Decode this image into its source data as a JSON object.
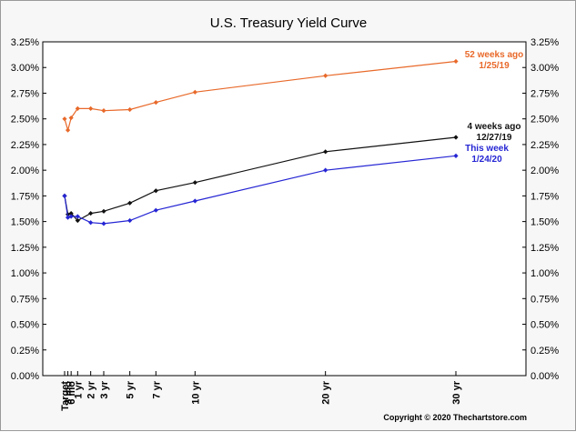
{
  "chart_data": {
    "type": "line",
    "title": "U.S. Treasury Yield Curve",
    "xlabel": "",
    "ylabel": "",
    "categories": [
      "Target",
      "3 mo",
      "6 mo",
      "1 yr",
      "2 yr",
      "3 yr",
      "5 yr",
      "7 yr",
      "10 yr",
      "20 yr",
      "30 yr"
    ],
    "x_months": [
      0,
      3,
      6,
      12,
      24,
      36,
      60,
      84,
      120,
      240,
      360
    ],
    "ylim": [
      0,
      3.25
    ],
    "yticks": [
      0,
      0.25,
      0.5,
      0.75,
      1.0,
      1.25,
      1.5,
      1.75,
      2.0,
      2.25,
      2.5,
      2.75,
      3.0,
      3.25
    ],
    "ytick_labels": [
      "0.00%",
      "0.25%",
      "0.50%",
      "0.75%",
      "1.00%",
      "1.25%",
      "1.50%",
      "1.75%",
      "2.00%",
      "2.25%",
      "2.50%",
      "2.75%",
      "3.00%",
      "3.25%"
    ],
    "grid": false,
    "series": [
      {
        "key": "y52",
        "label_lines": [
          "52 weeks ago",
          "1/25/19"
        ],
        "color": "#e8692a",
        "values": [
          2.5,
          2.39,
          2.51,
          2.6,
          2.6,
          2.58,
          2.59,
          2.66,
          2.76,
          2.92,
          3.06
        ]
      },
      {
        "key": "w4",
        "label_lines": [
          "4 weeks ago",
          "12/27/19"
        ],
        "color": "#111111",
        "values": [
          1.75,
          1.57,
          1.58,
          1.51,
          1.58,
          1.6,
          1.68,
          1.8,
          1.88,
          2.18,
          2.32
        ]
      },
      {
        "key": "tw",
        "label_lines": [
          "This week",
          "1/24/20"
        ],
        "color": "#2525d4",
        "values": [
          1.75,
          1.54,
          1.55,
          1.55,
          1.49,
          1.48,
          1.51,
          1.61,
          1.7,
          2.0,
          2.14
        ]
      }
    ]
  },
  "copyright": "Copyright © 2020 Thechartstore.com"
}
